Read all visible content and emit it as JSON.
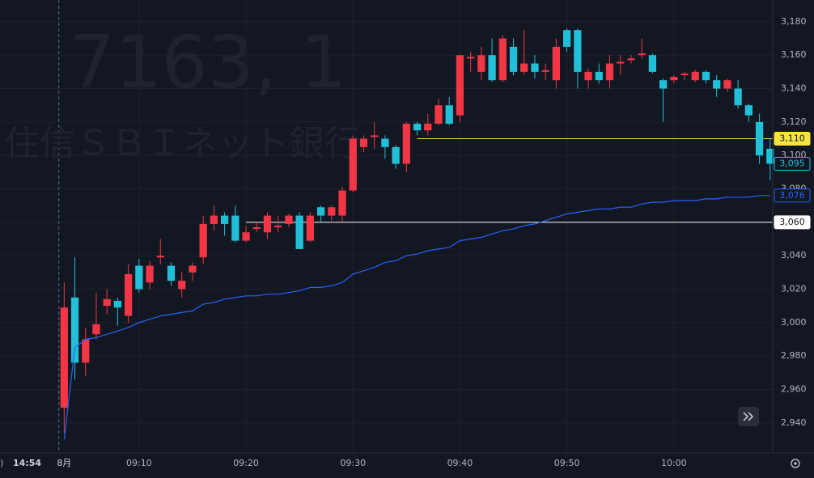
{
  "chart_data": {
    "type": "candlestick",
    "symbol": "7163, 1",
    "name": "住信ＳＢＩネット銀行",
    "clock": "14:54",
    "timezone": ")",
    "date_label": "8月",
    "up_color": "#f23645",
    "down_color": "#22c0d8",
    "x": [
      "09:03",
      "09:04",
      "09:05",
      "09:06",
      "09:07",
      "09:08",
      "09:09",
      "09:10",
      "09:11",
      "09:12",
      "09:13",
      "09:14",
      "09:15",
      "09:16",
      "09:17",
      "09:18",
      "09:19",
      "09:20",
      "09:21",
      "09:22",
      "09:23",
      "09:24",
      "09:25",
      "09:26",
      "09:27",
      "09:28",
      "09:29",
      "09:30",
      "09:31",
      "09:32",
      "09:33",
      "09:34",
      "09:35",
      "09:36",
      "09:37",
      "09:38",
      "09:39",
      "09:40",
      "09:41",
      "09:42",
      "09:43",
      "09:44",
      "09:45",
      "09:46",
      "09:47",
      "09:48",
      "09:49",
      "09:50",
      "09:51",
      "09:52",
      "09:53",
      "09:54",
      "09:55",
      "09:56",
      "09:57",
      "09:58",
      "09:59",
      "10:00",
      "10:01",
      "10:02",
      "10:03",
      "10:04",
      "10:05",
      "10:06",
      "10:07",
      "10:08",
      "10:09"
    ],
    "open": [
      2949,
      3015,
      2976,
      2993,
      3010,
      3013,
      3004,
      3034,
      3024,
      3039,
      3034,
      3020,
      3030,
      3039,
      3059,
      3064,
      3064,
      3049,
      3056,
      3054,
      3057,
      3059,
      3064,
      3049,
      3069,
      3064,
      3064,
      3079,
      3105,
      3111,
      3110,
      3105,
      3095,
      3119,
      3115,
      3119,
      3130,
      3124,
      3158,
      3150,
      3160,
      3145,
      3165,
      3150,
      3155,
      3150,
      3145,
      3175,
      3175,
      3145,
      3150,
      3145,
      3155,
      3157,
      3160,
      3160,
      3145,
      3145,
      3148,
      3145,
      3150,
      3145,
      3140,
      3140,
      3130,
      3120,
      3104
    ],
    "high": [
      3024,
      3039,
      2997,
      3018,
      3020,
      3015,
      3035,
      3038,
      3037,
      3050,
      3036,
      3030,
      3036,
      3064,
      3070,
      3066,
      3070,
      3058,
      3060,
      3066,
      3064,
      3065,
      3066,
      3066,
      3070,
      3070,
      3081,
      3112,
      3112,
      3120,
      3112,
      3106,
      3120,
      3120,
      3125,
      3134,
      3135,
      3160,
      3162,
      3165,
      3170,
      3172,
      3170,
      3175,
      3160,
      3155,
      3170,
      3176,
      3176,
      3152,
      3155,
      3160,
      3160,
      3160,
      3170,
      3161,
      3146,
      3148,
      3150,
      3151,
      3151,
      3148,
      3146,
      3145,
      3131,
      3125,
      3110
    ],
    "low": [
      2934,
      2966,
      2968,
      2990,
      3005,
      2998,
      3000,
      3018,
      3020,
      3035,
      3022,
      3015,
      3025,
      3035,
      3055,
      3052,
      3048,
      3048,
      3054,
      3050,
      3054,
      3057,
      3044,
      3048,
      3060,
      3061,
      3060,
      3078,
      3102,
      3104,
      3098,
      3092,
      3090,
      3112,
      3112,
      3118,
      3118,
      3120,
      3150,
      3145,
      3144,
      3144,
      3148,
      3148,
      3146,
      3145,
      3140,
      3162,
      3140,
      3140,
      3143,
      3140,
      3148,
      3155,
      3158,
      3149,
      3120,
      3143,
      3145,
      3144,
      3143,
      3135,
      3138,
      3128,
      3120,
      3095,
      3085
    ],
    "close": [
      3009,
      2976,
      2990,
      2999,
      3014,
      3009,
      3029,
      3020,
      3034,
      3040,
      3025,
      3025,
      3034,
      3059,
      3064,
      3059,
      3049,
      3054,
      3057,
      3064,
      3058,
      3064,
      3044,
      3064,
      3064,
      3069,
      3079,
      3110,
      3110,
      3112,
      3105,
      3095,
      3119,
      3115,
      3119,
      3130,
      3119,
      3160,
      3159,
      3160,
      3145,
      3170,
      3150,
      3155,
      3150,
      3151,
      3165,
      3165,
      3150,
      3150,
      3145,
      3155,
      3156,
      3158,
      3161,
      3150,
      3140,
      3147,
      3149,
      3150,
      3145,
      3140,
      3145,
      3130,
      3124,
      3100,
      3095
    ],
    "last_label": {
      "value": 3095,
      "label": "3,095"
    },
    "vwap": {
      "color": "#2962ff",
      "values": [
        2930,
        2985,
        2990,
        2991,
        2993,
        2995,
        2997,
        3000,
        3002,
        3004,
        3005,
        3006,
        3007,
        3011,
        3012,
        3014,
        3015,
        3016,
        3016,
        3017,
        3017,
        3018,
        3019,
        3021,
        3021,
        3022,
        3024,
        3029,
        3031,
        3033,
        3036,
        3037,
        3040,
        3041,
        3043,
        3044,
        3045,
        3049,
        3050,
        3051,
        3053,
        3055,
        3056,
        3058,
        3059,
        3061,
        3063,
        3065,
        3066,
        3067,
        3068,
        3068,
        3069,
        3069,
        3071,
        3072,
        3072,
        3073,
        3073,
        3073,
        3074,
        3074,
        3075,
        3075,
        3075,
        3076,
        3076
      ],
      "last_label": {
        "value": 3076,
        "label": "3,076"
      }
    },
    "hlines": [
      {
        "value": 3110,
        "label": "3,110",
        "color": "#f5e342",
        "start": "09:36"
      },
      {
        "value": 3060,
        "label": "3,060",
        "color": "#ffffff",
        "start": "09:20"
      }
    ],
    "xlim": [
      "08:57",
      "10:10"
    ],
    "xticks": [
      "09:10",
      "09:20",
      "09:30",
      "09:40",
      "09:50",
      "10:00"
    ],
    "ylim": [
      2922,
      3193
    ],
    "yticks": [
      {
        "value": 2940,
        "label": "2,940"
      },
      {
        "value": 2960,
        "label": "2,960"
      },
      {
        "value": 2980,
        "label": "2,980"
      },
      {
        "value": 3000,
        "label": "3,000"
      },
      {
        "value": 3020,
        "label": "3,020"
      },
      {
        "value": 3040,
        "label": "3,040"
      },
      {
        "value": 3060,
        "label": "3,060"
      },
      {
        "value": 3080,
        "label": "3,080"
      },
      {
        "value": 3100,
        "label": "3,100"
      },
      {
        "value": 3120,
        "label": "3,120"
      },
      {
        "value": 3140,
        "label": "3,140"
      },
      {
        "value": 3160,
        "label": "3,160"
      },
      {
        "value": 3180,
        "label": "3,180"
      }
    ],
    "grid": true
  }
}
